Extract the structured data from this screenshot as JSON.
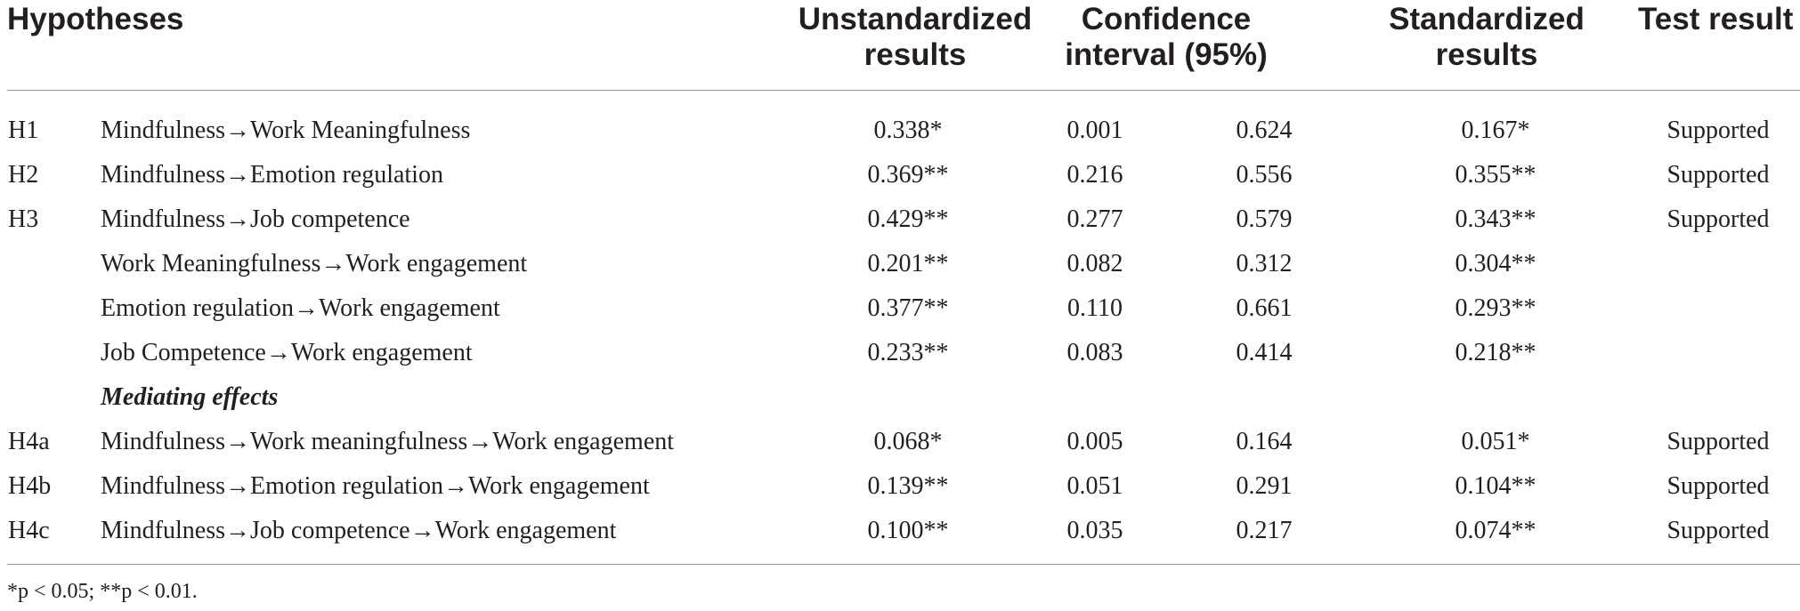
{
  "table": {
    "headers": {
      "hypotheses": "Hypotheses",
      "unstandardized": [
        "Unstandardized",
        "results"
      ],
      "confidence": [
        "Confidence",
        "interval (95%)"
      ],
      "standardized": [
        "Standardized",
        "results"
      ],
      "test_result": "Test result"
    },
    "rows": [
      {
        "id": "H1",
        "path": "Mindfulness→Work Meaningfulness",
        "unstd": "0.338*",
        "ci_low": "0.001",
        "ci_high": "0.624",
        "std": "0.167*",
        "test": "Supported"
      },
      {
        "id": "H2",
        "path": "Mindfulness→Emotion regulation",
        "unstd": "0.369**",
        "ci_low": "0.216",
        "ci_high": "0.556",
        "std": "0.355**",
        "test": "Supported"
      },
      {
        "id": "H3",
        "path": "Mindfulness→Job competence",
        "unstd": "0.429**",
        "ci_low": "0.277",
        "ci_high": "0.579",
        "std": "0.343**",
        "test": "Supported"
      },
      {
        "id": "",
        "path": "Work Meaningfulness→Work engagement",
        "unstd": "0.201**",
        "ci_low": "0.082",
        "ci_high": "0.312",
        "std": "0.304**",
        "test": ""
      },
      {
        "id": "",
        "path": "Emotion regulation→Work engagement",
        "unstd": "0.377**",
        "ci_low": "0.110",
        "ci_high": "0.661",
        "std": "0.293**",
        "test": ""
      },
      {
        "id": "",
        "path": "Job Competence→Work engagement",
        "unstd": "0.233**",
        "ci_low": "0.083",
        "ci_high": "0.414",
        "std": "0.218**",
        "test": ""
      }
    ],
    "section_label": "Mediating effects",
    "mediating_rows": [
      {
        "id": "H4a",
        "path": "Mindfulness→Work meaningfulness→Work engagement",
        "unstd": "0.068*",
        "ci_low": "0.005",
        "ci_high": "0.164",
        "std": "0.051*",
        "test": "Supported"
      },
      {
        "id": "H4b",
        "path": "Mindfulness→Emotion regulation→Work engagement",
        "unstd": "0.139**",
        "ci_low": "0.051",
        "ci_high": "0.291",
        "std": "0.104**",
        "test": "Supported"
      },
      {
        "id": "H4c",
        "path": "Mindfulness→Job competence→Work engagement",
        "unstd": "0.100**",
        "ci_low": "0.035",
        "ci_high": "0.217",
        "std": "0.074**",
        "test": "Supported"
      }
    ],
    "footnote": "*p < 0.05; **p < 0.01."
  }
}
